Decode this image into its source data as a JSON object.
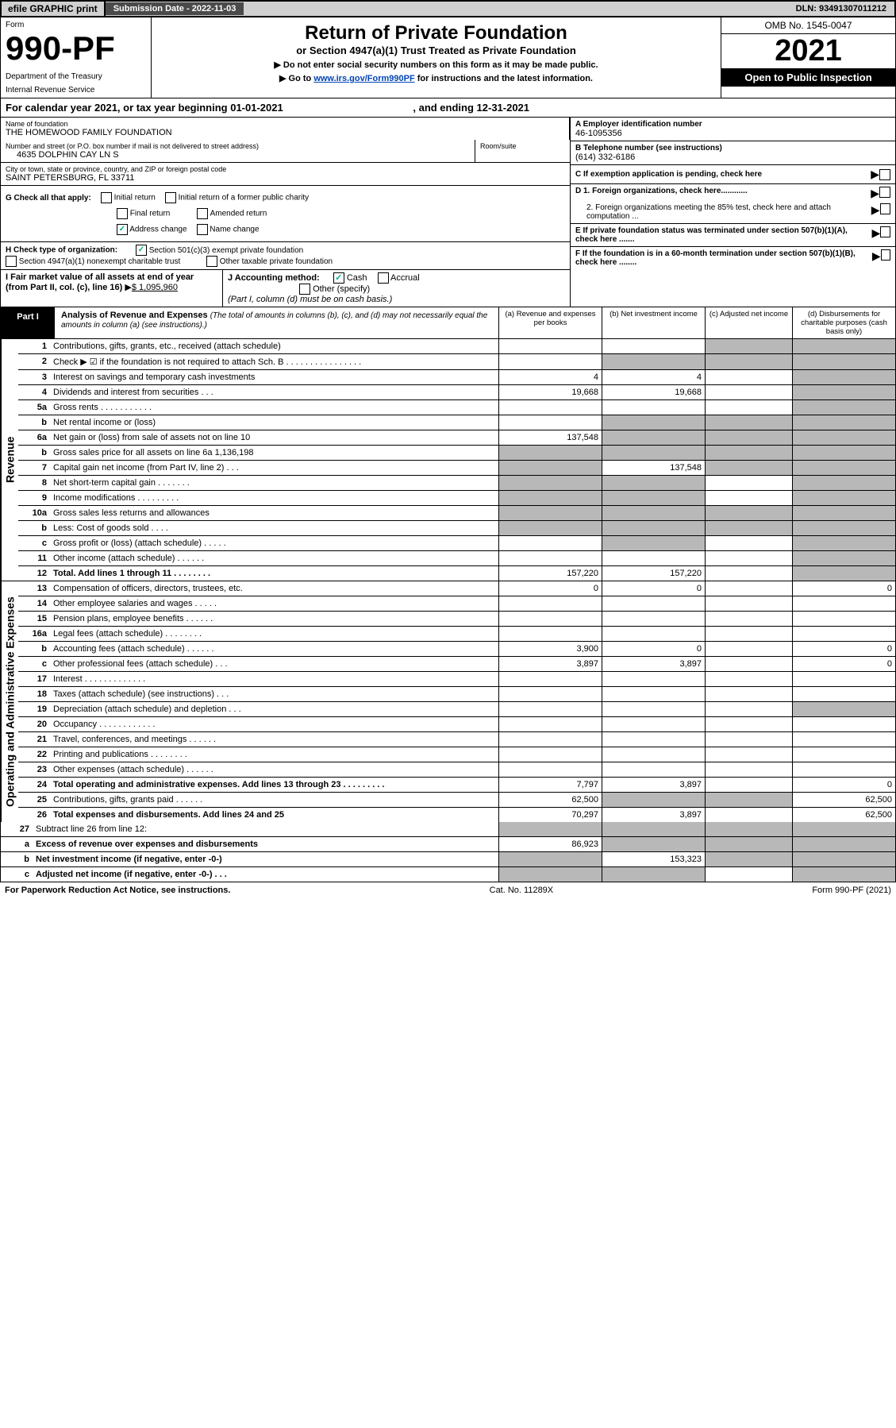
{
  "topbar": {
    "efile": "efile GRAPHIC print",
    "sub_label": "Submission Date - 2022-11-03",
    "dln": "DLN: 93491307011212"
  },
  "header": {
    "form_label": "Form",
    "form_num": "990-PF",
    "dept1": "Department of the Treasury",
    "dept2": "Internal Revenue Service",
    "title": "Return of Private Foundation",
    "subtitle": "or Section 4947(a)(1) Trust Treated as Private Foundation",
    "instr1": "▶ Do not enter social security numbers on this form as it may be made public.",
    "instr2_pre": "▶ Go to ",
    "instr2_link": "www.irs.gov/Form990PF",
    "instr2_post": " for instructions and the latest information.",
    "omb": "OMB No. 1545-0047",
    "year": "2021",
    "open_pub": "Open to Public Inspection"
  },
  "cal_year": {
    "text_pre": "For calendar year 2021, or tax year beginning 01-01-2021",
    "text_post": ", and ending 12-31-2021"
  },
  "info": {
    "name_lbl": "Name of foundation",
    "name": "THE HOMEWOOD FAMILY FOUNDATION",
    "addr_lbl": "Number and street (or P.O. box number if mail is not delivered to street address)",
    "addr": "4635 DOLPHIN CAY LN S",
    "room_lbl": "Room/suite",
    "city_lbl": "City or town, state or province, country, and ZIP or foreign postal code",
    "city": "SAINT PETERSBURG, FL  33711",
    "a_lbl": "A Employer identification number",
    "a_val": "46-1095356",
    "b_lbl": "B Telephone number (see instructions)",
    "b_val": "(614) 332-6186",
    "c_lbl": "C If exemption application is pending, check here",
    "g_lbl": "G Check all that apply:",
    "g_initial": "Initial return",
    "g_initial_former": "Initial return of a former public charity",
    "g_final": "Final return",
    "g_amended": "Amended return",
    "g_addr_change": "Address change",
    "g_name_change": "Name change",
    "d1_lbl": "D 1. Foreign organizations, check here............",
    "d2_lbl": "2. Foreign organizations meeting the 85% test, check here and attach computation ...",
    "h_lbl": "H Check type of organization:",
    "h_501c3": "Section 501(c)(3) exempt private foundation",
    "h_4947": "Section 4947(a)(1) nonexempt charitable trust",
    "h_other_tax": "Other taxable private foundation",
    "e_lbl": "E  If private foundation status was terminated under section 507(b)(1)(A), check here .......",
    "i_lbl": "I Fair market value of all assets at end of year (from Part II, col. (c), line 16)",
    "i_val": "$  1,095,960",
    "j_lbl": "J Accounting method:",
    "j_cash": "Cash",
    "j_accrual": "Accrual",
    "j_other": "Other (specify)",
    "j_note": "(Part I, column (d) must be on cash basis.)",
    "f_lbl": "F  If the foundation is in a 60-month termination under section 507(b)(1)(B), check here ........"
  },
  "part1": {
    "tag": "Part I",
    "title": "Analysis of Revenue and Expenses",
    "title_note": " (The total of amounts in columns (b), (c), and (d) may not necessarily equal the amounts in column (a) (see instructions).)",
    "col_a": "(a)   Revenue and expenses per books",
    "col_b": "(b)   Net investment income",
    "col_c": "(c)   Adjusted net income",
    "col_d": "(d)   Disbursements for charitable purposes (cash basis only)"
  },
  "revenue_label": "Revenue",
  "opex_label": "Operating and Administrative Expenses",
  "rows": [
    {
      "n": "1",
      "d": "Contributions, gifts, grants, etc., received (attach schedule)",
      "a": "",
      "b": "",
      "c": "g",
      "dd": "g"
    },
    {
      "n": "2",
      "d": "Check ▶ ☑ if the foundation is not required to attach Sch. B   .  .  .  .  .  .  .  .  .  .  .  .  .  .  .  .",
      "a": "",
      "b": "g",
      "c": "g",
      "dd": "g"
    },
    {
      "n": "3",
      "d": "Interest on savings and temporary cash investments",
      "a": "4",
      "b": "4",
      "c": "",
      "dd": "g"
    },
    {
      "n": "4",
      "d": "Dividends and interest from securities   .   .   .",
      "a": "19,668",
      "b": "19,668",
      "c": "",
      "dd": "g"
    },
    {
      "n": "5a",
      "d": "Gross rents   .   .   .   .   .   .   .   .   .   .   .",
      "a": "",
      "b": "",
      "c": "",
      "dd": "g"
    },
    {
      "n": "b",
      "d": "Net rental income or (loss)  ",
      "a": "",
      "b": "g",
      "c": "g",
      "dd": "g"
    },
    {
      "n": "6a",
      "d": "Net gain or (loss) from sale of assets not on line 10",
      "a": "137,548",
      "b": "g",
      "c": "g",
      "dd": "g"
    },
    {
      "n": "b",
      "d": "Gross sales price for all assets on line 6a             1,136,198",
      "a": "g",
      "b": "g",
      "c": "g",
      "dd": "g"
    },
    {
      "n": "7",
      "d": "Capital gain net income (from Part IV, line 2)   .   .   .",
      "a": "g",
      "b": "137,548",
      "c": "g",
      "dd": "g"
    },
    {
      "n": "8",
      "d": "Net short-term capital gain   .   .   .   .   .   .   .",
      "a": "g",
      "b": "g",
      "c": "",
      "dd": "g"
    },
    {
      "n": "9",
      "d": "Income modifications   .   .   .   .   .   .   .   .   .",
      "a": "g",
      "b": "g",
      "c": "",
      "dd": "g"
    },
    {
      "n": "10a",
      "d": "Gross sales less returns and allowances",
      "a": "g",
      "b": "g",
      "c": "g",
      "dd": "g"
    },
    {
      "n": "b",
      "d": "Less: Cost of goods sold   .   .   .   .",
      "a": "g",
      "b": "g",
      "c": "g",
      "dd": "g"
    },
    {
      "n": "c",
      "d": "Gross profit or (loss) (attach schedule)   .   .   .   .   .",
      "a": "",
      "b": "g",
      "c": "",
      "dd": "g"
    },
    {
      "n": "11",
      "d": "Other income (attach schedule)   .   .   .   .   .   .",
      "a": "",
      "b": "",
      "c": "",
      "dd": "g"
    },
    {
      "n": "12",
      "d": "Total. Add lines 1 through 11   .   .   .   .   .   .   .   .",
      "a": "157,220",
      "b": "157,220",
      "c": "",
      "dd": "g",
      "bold": true
    }
  ],
  "opex_rows": [
    {
      "n": "13",
      "d": "Compensation of officers, directors, trustees, etc.",
      "a": "0",
      "b": "0",
      "c": "",
      "dd": "0"
    },
    {
      "n": "14",
      "d": "Other employee salaries and wages   .   .   .   .   .",
      "a": "",
      "b": "",
      "c": "",
      "dd": ""
    },
    {
      "n": "15",
      "d": "Pension plans, employee benefits   .   .   .   .   .   .",
      "a": "",
      "b": "",
      "c": "",
      "dd": ""
    },
    {
      "n": "16a",
      "d": "Legal fees (attach schedule)   .   .   .   .   .   .   .   .",
      "a": "",
      "b": "",
      "c": "",
      "dd": ""
    },
    {
      "n": "b",
      "d": "Accounting fees (attach schedule)   .   .   .   .   .   .",
      "a": "3,900",
      "b": "0",
      "c": "",
      "dd": "0"
    },
    {
      "n": "c",
      "d": "Other professional fees (attach schedule)   .   .   .",
      "a": "3,897",
      "b": "3,897",
      "c": "",
      "dd": "0"
    },
    {
      "n": "17",
      "d": "Interest   .   .   .   .   .   .   .   .   .   .   .   .   .",
      "a": "",
      "b": "",
      "c": "",
      "dd": ""
    },
    {
      "n": "18",
      "d": "Taxes (attach schedule) (see instructions)   .   .   .",
      "a": "",
      "b": "",
      "c": "",
      "dd": ""
    },
    {
      "n": "19",
      "d": "Depreciation (attach schedule) and depletion   .   .   .",
      "a": "",
      "b": "",
      "c": "",
      "dd": "g"
    },
    {
      "n": "20",
      "d": "Occupancy   .   .   .   .   .   .   .   .   .   .   .   .",
      "a": "",
      "b": "",
      "c": "",
      "dd": ""
    },
    {
      "n": "21",
      "d": "Travel, conferences, and meetings   .   .   .   .   .   .",
      "a": "",
      "b": "",
      "c": "",
      "dd": ""
    },
    {
      "n": "22",
      "d": "Printing and publications   .   .   .   .   .   .   .   .",
      "a": "",
      "b": "",
      "c": "",
      "dd": ""
    },
    {
      "n": "23",
      "d": "Other expenses (attach schedule)   .   .   .   .   .   .",
      "a": "",
      "b": "",
      "c": "",
      "dd": ""
    },
    {
      "n": "24",
      "d": "Total operating and administrative expenses. Add lines 13 through 23   .   .   .   .   .   .   .   .   .",
      "a": "7,797",
      "b": "3,897",
      "c": "",
      "dd": "0",
      "bold": true
    },
    {
      "n": "25",
      "d": "Contributions, gifts, grants paid   .   .   .   .   .   .",
      "a": "62,500",
      "b": "g",
      "c": "g",
      "dd": "62,500"
    },
    {
      "n": "26",
      "d": "Total expenses and disbursements. Add lines 24 and 25",
      "a": "70,297",
      "b": "3,897",
      "c": "",
      "dd": "62,500",
      "bold": true
    }
  ],
  "final_rows": [
    {
      "n": "27",
      "d": "Subtract line 26 from line 12:",
      "a": "g",
      "b": "g",
      "c": "g",
      "dd": "g"
    },
    {
      "n": "a",
      "d": "Excess of revenue over expenses and disbursements",
      "a": "86,923",
      "b": "g",
      "c": "g",
      "dd": "g",
      "bold": true
    },
    {
      "n": "b",
      "d": "Net investment income (if negative, enter -0-)",
      "a": "g",
      "b": "153,323",
      "c": "g",
      "dd": "g",
      "bold": true
    },
    {
      "n": "c",
      "d": "Adjusted net income (if negative, enter -0-)   .   .   .",
      "a": "g",
      "b": "g",
      "c": "",
      "dd": "g",
      "bold": true
    }
  ],
  "footer": {
    "left": "For Paperwork Reduction Act Notice, see instructions.",
    "mid": "Cat. No. 11289X",
    "right": "Form 990-PF (2021)"
  }
}
